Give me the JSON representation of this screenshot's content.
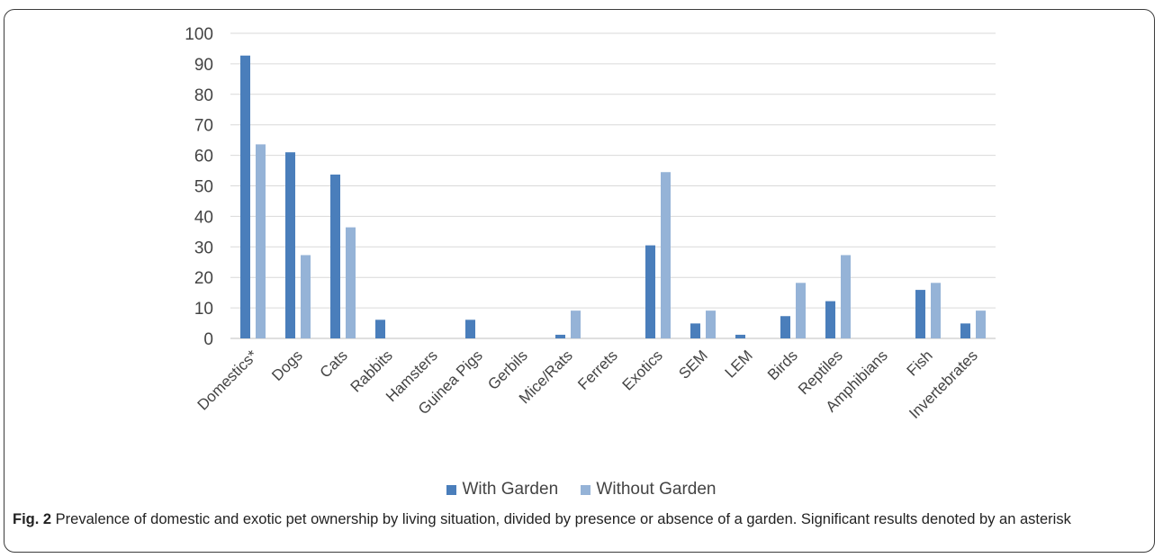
{
  "chart_data": {
    "type": "bar",
    "categories": [
      "Domestics*",
      "Dogs",
      "Cats",
      "Rabbits",
      "Hamsters",
      "Guinea Pigs",
      "Gerbils",
      "Mice/Rats",
      "Ferrets",
      "Exotics",
      "SEM",
      "LEM",
      "Birds",
      "Reptiles",
      "Amphibians",
      "Fish",
      "Invertebrates"
    ],
    "series": [
      {
        "name": "With Garden",
        "color": "#4a7ebb",
        "values": [
          92.7,
          61.0,
          53.7,
          6.1,
          0,
          6.1,
          0,
          1.2,
          0,
          30.5,
          4.9,
          1.2,
          7.3,
          12.2,
          0,
          15.9,
          4.9
        ]
      },
      {
        "name": "Without Garden",
        "color": "#95b3d7",
        "values": [
          63.6,
          27.3,
          36.4,
          0,
          0,
          0,
          0,
          9.1,
          0,
          54.5,
          9.1,
          0,
          18.2,
          27.3,
          0,
          18.2,
          9.1
        ]
      }
    ],
    "ylim": [
      0,
      100
    ],
    "yticks": [
      0,
      10,
      20,
      30,
      40,
      50,
      60,
      70,
      80,
      90,
      100
    ],
    "grid": true,
    "legend_position": "bottom"
  },
  "caption": {
    "label": "Fig. 2",
    "text": " Prevalence of domestic and exotic pet ownership by living situation, divided by presence or absence of a garden. Significant results denoted by an asterisk"
  }
}
